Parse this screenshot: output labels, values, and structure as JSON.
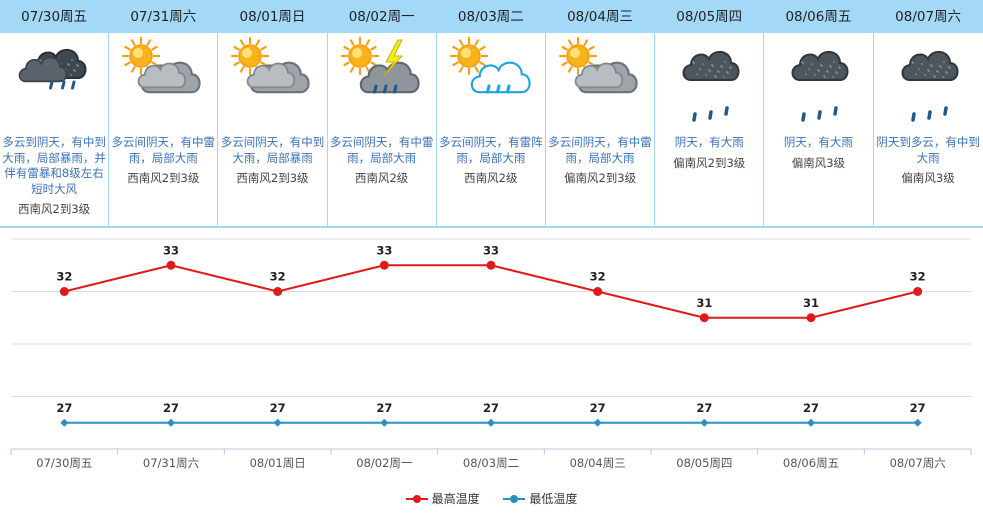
{
  "days": [
    {
      "date": "07/30周五",
      "weather": "多云到阴天，有中到大雨，局部暴雨，并伴有雷暴和8级左右短时大风",
      "wind": "西南风2到3级",
      "icon": "dark-cloud-rain-icon"
    },
    {
      "date": "07/31周六",
      "weather": "多云间阴天，有中雷雨，局部大雨",
      "wind": "西南风2到3级",
      "icon": "sun-cloud-icon"
    },
    {
      "date": "08/01周日",
      "weather": "多云间阴天，有中到大雨，局部暴雨",
      "wind": "西南风2到3级",
      "icon": "sun-cloud-icon"
    },
    {
      "date": "08/02周一",
      "weather": "多云间阴天，有中雷雨，局部大雨",
      "wind": "西南风2级",
      "icon": "sun-thunder-rain-icon"
    },
    {
      "date": "08/03周二",
      "weather": "多云间阴天，有雷阵雨，局部大雨",
      "wind": "西南风2级",
      "icon": "sun-shower-icon"
    },
    {
      "date": "08/04周三",
      "weather": "多云间阴天，有中雷雨，局部大雨",
      "wind": "偏南风2到3级",
      "icon": "sun-cloud-icon"
    },
    {
      "date": "08/05周四",
      "weather": "阴天，有大雨",
      "wind": "偏南风2到3级",
      "icon": "heavy-rain-icon"
    },
    {
      "date": "08/06周五",
      "weather": "阴天，有大雨",
      "wind": "偏南风3级",
      "icon": "heavy-rain-icon"
    },
    {
      "date": "08/07周六",
      "weather": "阴天到多云，有中到大雨",
      "wind": "偏南风3级",
      "icon": "heavy-rain-icon"
    }
  ],
  "chart_data": {
    "type": "line",
    "categories": [
      "07/30周五",
      "07/31周六",
      "08/01周日",
      "08/02周一",
      "08/03周二",
      "08/04周三",
      "08/05周四",
      "08/06周五",
      "08/07周六"
    ],
    "series": [
      {
        "name": "最高温度",
        "values": [
          32,
          33,
          32,
          33,
          33,
          32,
          31,
          31,
          32
        ],
        "color": "#e0191b"
      },
      {
        "name": "最低温度",
        "values": [
          27,
          27,
          27,
          27,
          27,
          27,
          27,
          27,
          27
        ],
        "color": "#2c8fc3"
      }
    ],
    "legend": "bottom-center",
    "grid": true
  }
}
